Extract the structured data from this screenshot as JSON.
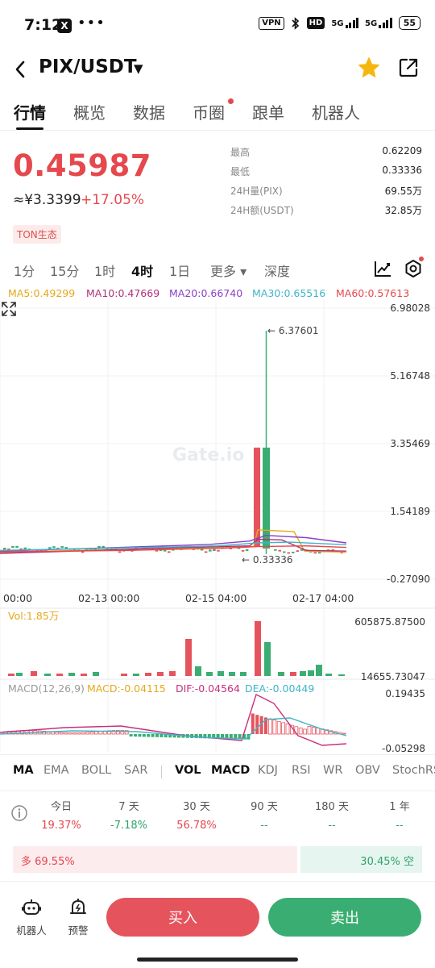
{
  "status_bar": {
    "time": "7:12",
    "x_badge": "X",
    "dots": "•••",
    "vpn": "VPN",
    "hd": "HD",
    "net1": "5G",
    "net2": "5G",
    "battery": "55"
  },
  "header": {
    "pair": "PIX/USDT",
    "caret": "▼"
  },
  "tabs": [
    {
      "label": "行情"
    },
    {
      "label": "概览"
    },
    {
      "label": "数据"
    },
    {
      "label": "币圈"
    },
    {
      "label": "跟单"
    },
    {
      "label": "机器人"
    }
  ],
  "price": {
    "last": "0.45987",
    "cny": "≈¥3.3399",
    "change": "+17.05%",
    "tag": "TON生态"
  },
  "stats": [
    {
      "label": "最高",
      "value": "0.62209"
    },
    {
      "label": "最低",
      "value": "0.33336"
    },
    {
      "label": "24H量(PIX)",
      "value": "69.55万"
    },
    {
      "label": "24H额(USDT)",
      "value": "32.85万"
    }
  ],
  "timeframes": [
    {
      "label": "1分"
    },
    {
      "label": "15分"
    },
    {
      "label": "1时"
    },
    {
      "label": "4时"
    },
    {
      "label": "1日"
    },
    {
      "label": "更多 ▾"
    },
    {
      "label": "深度"
    }
  ],
  "ma_legend": [
    {
      "label": "MA5:0.49299",
      "color": "#e5a91a"
    },
    {
      "label": "MA10:0.47669",
      "color": "#b0307a"
    },
    {
      "label": "MA20:0.66740",
      "color": "#8a3fc8"
    },
    {
      "label": "MA30:0.65516",
      "color": "#3fb5c7"
    },
    {
      "label": "MA60:0.57613",
      "color": "#e5484d"
    }
  ],
  "chart": {
    "watermark": "Gate.io",
    "max_annotation": "← 6.37601",
    "min_annotation": "← 0.33336",
    "price_ticks": [
      "6.98028",
      "5.16748",
      "3.35469",
      "1.54189",
      "-0.27090"
    ],
    "date_ticks": [
      "00:00",
      "02-13 00:00",
      "02-15 04:00",
      "02-17 04:00"
    ],
    "vol_label": "Vol:1.85万",
    "vol_ticks": [
      "605875.87500",
      "14655.73047"
    ],
    "macd_legend": [
      {
        "label": "MACD(12,26,9)",
        "color": "#999999"
      },
      {
        "label": "MACD:-0.04115",
        "color": "#e5a91a"
      },
      {
        "label": "DIF:-0.04564",
        "color": "#c8307a"
      },
      {
        "label": "DEA:-0.00449",
        "color": "#3fb5c7"
      }
    ],
    "macd_ticks": [
      "0.19435",
      "-0.05298"
    ],
    "up_color": "#3aae72",
    "down_color": "#e5545d"
  },
  "chart_data": {
    "type": "candlestick",
    "ylim": [
      -0.2709,
      6.98028
    ],
    "spike_high": 6.37601,
    "low": 0.33336,
    "x_ticks": [
      "00:00",
      "02-13 00:00",
      "02-15 04:00",
      "02-17 04:00"
    ],
    "volume_range": [
      14655.73047,
      605875.875
    ],
    "macd_range": [
      -0.05298,
      0.19435
    ]
  },
  "indicators": [
    {
      "label": "MA"
    },
    {
      "label": "EMA"
    },
    {
      "label": "BOLL"
    },
    {
      "label": "SAR"
    },
    {
      "label": "VOL"
    },
    {
      "label": "MACD"
    },
    {
      "label": "KDJ"
    },
    {
      "label": "RSI"
    },
    {
      "label": "WR"
    },
    {
      "label": "OBV"
    },
    {
      "label": "StochRS"
    }
  ],
  "performance": [
    {
      "label": "今日",
      "value": "19.37%",
      "color": "#e5484d"
    },
    {
      "label": "7 天",
      "value": "-7.18%",
      "color": "#2fa36b"
    },
    {
      "label": "30 天",
      "value": "56.78%",
      "color": "#e5484d"
    },
    {
      "label": "90 天",
      "value": "--",
      "color": "#2fa36b"
    },
    {
      "label": "180 天",
      "value": "--",
      "color": "#2fa36b"
    },
    {
      "label": "1 年",
      "value": "--",
      "color": "#2fa36b"
    }
  ],
  "sentiment": {
    "buy_label": "多 69.55%",
    "sell_label": "30.45% 空",
    "buy_fraction": 0.6955
  },
  "bottom": {
    "robot_label": "机器人",
    "alert_label": "预警",
    "buy_label": "买入",
    "sell_label": "卖出"
  }
}
